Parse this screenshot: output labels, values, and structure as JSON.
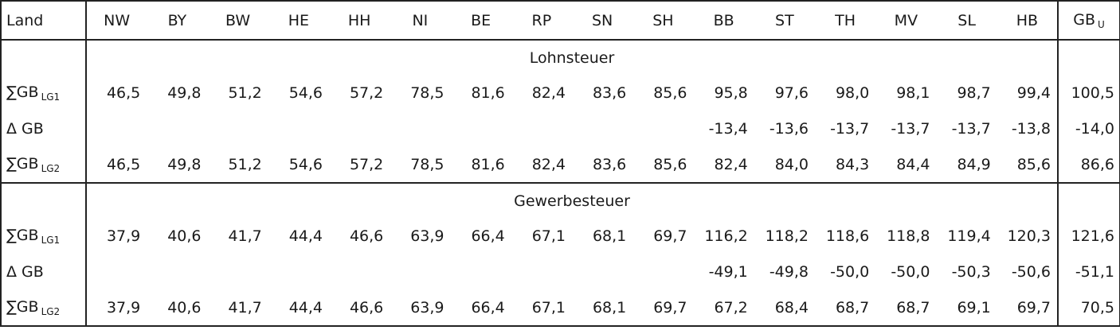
{
  "header": {
    "label": "Land",
    "states": [
      "NW",
      "BY",
      "BW",
      "HE",
      "HH",
      "NI",
      "BE",
      "RP",
      "SN",
      "SH",
      "BB",
      "ST",
      "TH",
      "MV",
      "SL",
      "HB"
    ],
    "total": {
      "text": "GB",
      "sub": "U"
    }
  },
  "sections": [
    {
      "title": "Lohnsteuer",
      "rows": [
        {
          "label": {
            "text": "∑GB",
            "sub": "LG1"
          },
          "values": [
            "46,5",
            "49,8",
            "51,2",
            "54,6",
            "57,2",
            "78,5",
            "81,6",
            "82,4",
            "83,6",
            "85,6",
            "95,8",
            "97,6",
            "98,0",
            "98,1",
            "98,7",
            "99,4"
          ],
          "total": "100,5"
        },
        {
          "label": {
            "text": "Δ GB"
          },
          "values": [
            null,
            null,
            null,
            null,
            null,
            null,
            null,
            null,
            null,
            null,
            "-13,4",
            "-13,6",
            "-13,7",
            "-13,7",
            "-13,7",
            "-13,8"
          ],
          "total": "-14,0"
        },
        {
          "label": {
            "text": "∑GB",
            "sub": "LG2"
          },
          "values": [
            "46,5",
            "49,8",
            "51,2",
            "54,6",
            "57,2",
            "78,5",
            "81,6",
            "82,4",
            "83,6",
            "85,6",
            "82,4",
            "84,0",
            "84,3",
            "84,4",
            "84,9",
            "85,6"
          ],
          "total": "86,6"
        }
      ]
    },
    {
      "title": "Gewerbesteuer",
      "rows": [
        {
          "label": {
            "text": "∑GB",
            "sub": "LG1"
          },
          "values": [
            "37,9",
            "40,6",
            "41,7",
            "44,4",
            "46,6",
            "63,9",
            "66,4",
            "67,1",
            "68,1",
            "69,7",
            "116,2",
            "118,2",
            "118,6",
            "118,8",
            "119,4",
            "120,3"
          ],
          "total": "121,6"
        },
        {
          "label": {
            "text": "Δ GB"
          },
          "values": [
            null,
            null,
            null,
            null,
            null,
            null,
            null,
            null,
            null,
            null,
            "-49,1",
            "-49,8",
            "-50,0",
            "-50,0",
            "-50,3",
            "-50,6"
          ],
          "total": "-51,1"
        },
        {
          "label": {
            "text": "∑GB",
            "sub": "LG2"
          },
          "values": [
            "37,9",
            "40,6",
            "41,7",
            "44,4",
            "46,6",
            "63,9",
            "66,4",
            "67,1",
            "68,1",
            "69,7",
            "67,2",
            "68,4",
            "68,7",
            "68,7",
            "69,1",
            "69,7"
          ],
          "total": "70,5"
        }
      ]
    }
  ]
}
